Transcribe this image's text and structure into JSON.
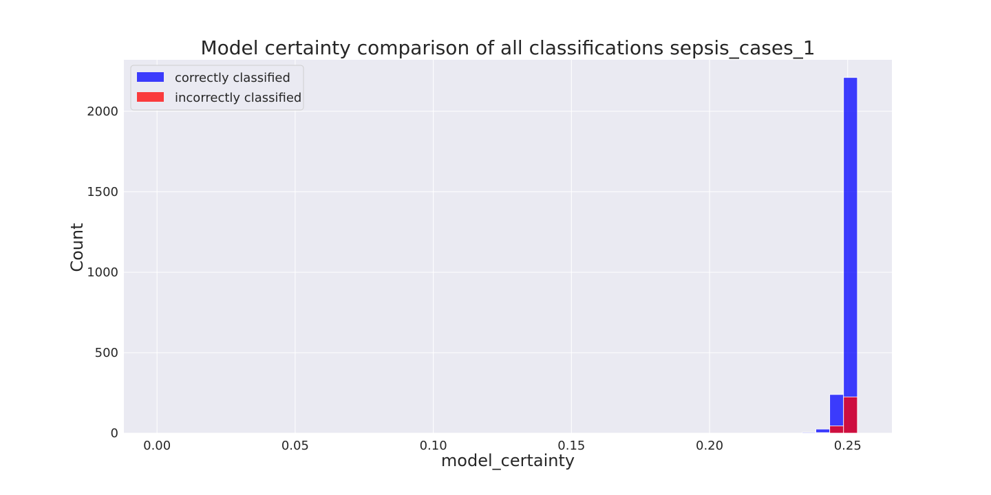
{
  "chart_data": {
    "type": "histogram",
    "title": "Model certainty comparison of all classifications sepsis_cases_1",
    "xlabel": "model_certainty",
    "ylabel": "Count",
    "xlim": [
      -0.012,
      0.266
    ],
    "ylim": [
      0,
      2320
    ],
    "xticks": [
      0.0,
      0.05,
      0.1,
      0.15,
      0.2,
      0.25
    ],
    "xtick_labels": [
      "0.00",
      "0.05",
      "0.10",
      "0.15",
      "0.20",
      "0.25"
    ],
    "yticks": [
      0,
      500,
      1000,
      1500,
      2000
    ],
    "ytick_labels": [
      "0",
      "500",
      "1000",
      "1500",
      "2000"
    ],
    "grid": true,
    "legend_position": "top-left",
    "bin_width": 0.005,
    "series": [
      {
        "name": "correctly classified",
        "color": "#0000ff",
        "bins": [
          {
            "x0": 0.2335,
            "x1": 0.2385,
            "count": 5
          },
          {
            "x0": 0.2385,
            "x1": 0.2435,
            "count": 25
          },
          {
            "x0": 0.2435,
            "x1": 0.2485,
            "count": 240
          },
          {
            "x0": 0.2485,
            "x1": 0.2535,
            "count": 2210
          }
        ]
      },
      {
        "name": "incorrectly classified",
        "color": "#ff0000",
        "bins": [
          {
            "x0": 0.2335,
            "x1": 0.2385,
            "count": 1
          },
          {
            "x0": 0.2385,
            "x1": 0.2435,
            "count": 3
          },
          {
            "x0": 0.2435,
            "x1": 0.2485,
            "count": 45
          },
          {
            "x0": 0.2485,
            "x1": 0.2535,
            "count": 225
          }
        ]
      }
    ]
  }
}
